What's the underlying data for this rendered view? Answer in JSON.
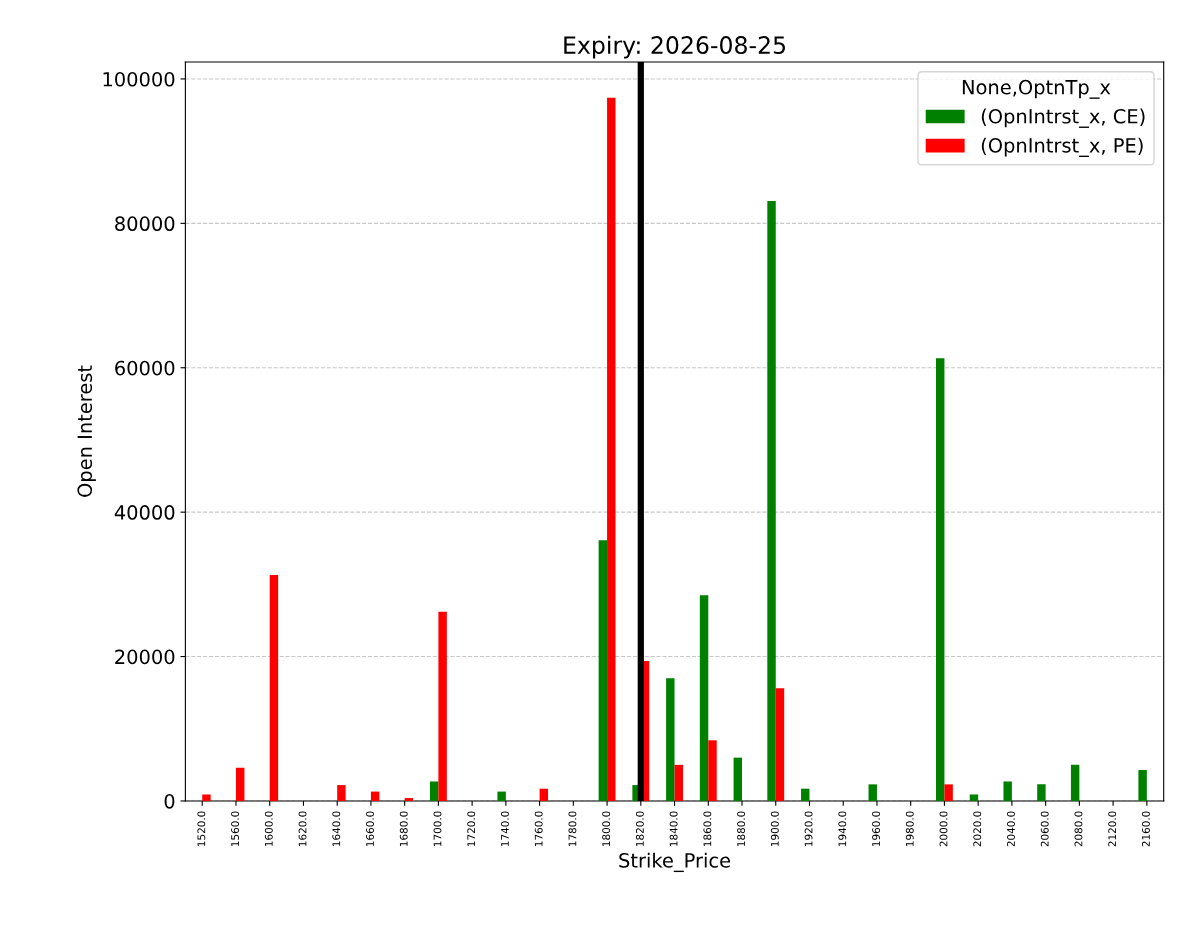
{
  "chart_data": {
    "type": "bar",
    "title": "Expiry: 2026-08-25",
    "xlabel": "Strike_Price",
    "ylabel": "Open Interest",
    "legend_title": "None,OptnTp_x",
    "categories": [
      "1520.0",
      "1560.0",
      "1600.0",
      "1620.0",
      "1640.0",
      "1660.0",
      "1680.0",
      "1700.0",
      "1720.0",
      "1740.0",
      "1760.0",
      "1780.0",
      "1800.0",
      "1820.0",
      "1840.0",
      "1860.0",
      "1880.0",
      "1900.0",
      "1920.0",
      "1940.0",
      "1960.0",
      "1980.0",
      "2000.0",
      "2020.0",
      "2040.0",
      "2060.0",
      "2080.0",
      "2120.0",
      "2160.0"
    ],
    "series": [
      {
        "name": "(OpnIntrst_x, CE)",
        "color": "#008000",
        "values": [
          null,
          null,
          null,
          null,
          null,
          null,
          null,
          2700,
          null,
          1300,
          null,
          null,
          36100,
          2200,
          17000,
          28500,
          6000,
          83100,
          1700,
          null,
          2300,
          null,
          61300,
          900,
          2700,
          2300,
          5000,
          null,
          4300
        ]
      },
      {
        "name": "(OpnIntrst_x, PE)",
        "color": "#ff0000",
        "values": [
          900,
          4600,
          31300,
          null,
          2200,
          1300,
          400,
          26200,
          null,
          null,
          1700,
          null,
          97400,
          19400,
          5000,
          8400,
          null,
          15600,
          null,
          null,
          null,
          null,
          2300,
          null,
          null,
          null,
          null,
          null,
          null
        ]
      }
    ],
    "ylim": [
      0,
      102350
    ],
    "yticks": [
      0,
      20000,
      40000,
      60000,
      80000,
      100000
    ],
    "grid": "y",
    "legend": "top right",
    "ref_lines": [
      {
        "axis": "x",
        "value": "1820.0",
        "color": "#000000"
      }
    ]
  }
}
